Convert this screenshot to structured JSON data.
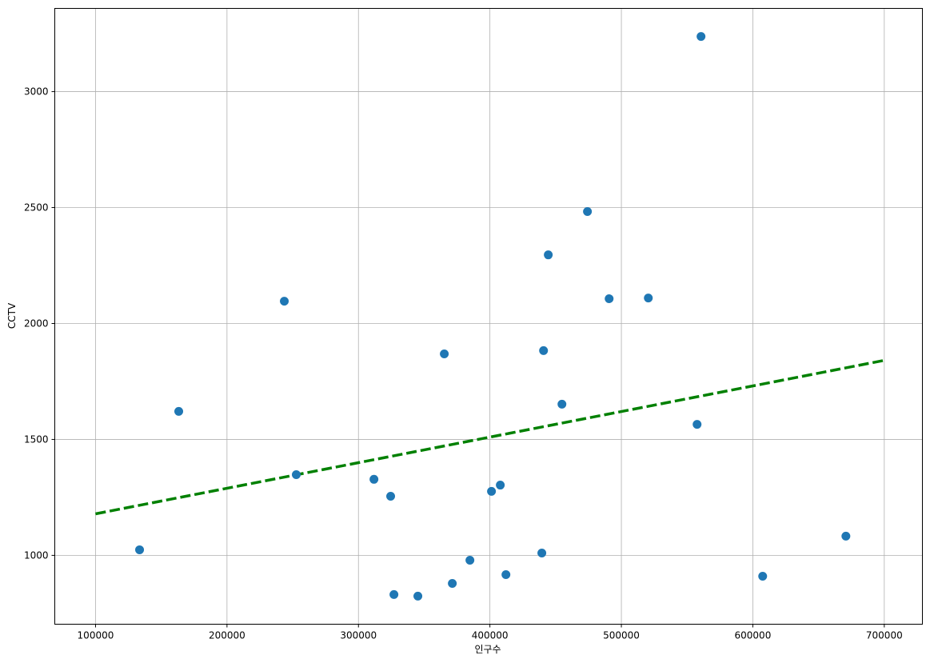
{
  "chart_data": {
    "type": "scatter",
    "title": "",
    "xlabel": "인구수",
    "ylabel": "CCTV",
    "xlim": [
      69000,
      729000
    ],
    "ylim": [
      703,
      3359
    ],
    "xticks": [
      100000,
      200000,
      300000,
      400000,
      500000,
      600000,
      700000
    ],
    "yticks": [
      1000,
      1500,
      2000,
      2500,
      3000
    ],
    "grid": true,
    "colors": {
      "points": "#1f77b4",
      "trend": "#008000",
      "grid": "#b0b0b0"
    },
    "points": [
      {
        "x": 560600,
        "y": 3238
      },
      {
        "x": 474200,
        "y": 2483
      },
      {
        "x": 444400,
        "y": 2296
      },
      {
        "x": 243600,
        "y": 2096
      },
      {
        "x": 490700,
        "y": 2107
      },
      {
        "x": 520500,
        "y": 2110
      },
      {
        "x": 365300,
        "y": 1869
      },
      {
        "x": 440800,
        "y": 1883
      },
      {
        "x": 454800,
        "y": 1652
      },
      {
        "x": 163300,
        "y": 1621
      },
      {
        "x": 557600,
        "y": 1565
      },
      {
        "x": 252700,
        "y": 1348
      },
      {
        "x": 311800,
        "y": 1328
      },
      {
        "x": 324500,
        "y": 1255
      },
      {
        "x": 407900,
        "y": 1303
      },
      {
        "x": 401200,
        "y": 1276
      },
      {
        "x": 133500,
        "y": 1024
      },
      {
        "x": 439500,
        "y": 1010
      },
      {
        "x": 670800,
        "y": 1083
      },
      {
        "x": 384800,
        "y": 979
      },
      {
        "x": 412200,
        "y": 917
      },
      {
        "x": 607500,
        "y": 910
      },
      {
        "x": 371400,
        "y": 879
      },
      {
        "x": 327000,
        "y": 831
      },
      {
        "x": 345200,
        "y": 824
      }
    ],
    "trend_line": {
      "style": "dashed",
      "x": [
        100000,
        700000
      ],
      "y": [
        1179,
        1841
      ]
    }
  }
}
